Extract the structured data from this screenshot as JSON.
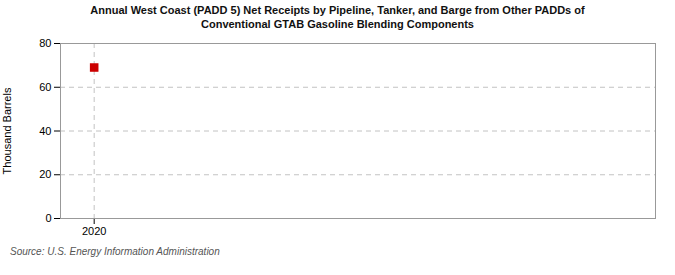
{
  "chart_data": {
    "type": "scatter",
    "title": "Annual West Coast (PADD 5) Net Receipts by Pipeline, Tanker, and Barge from Other PADDs of",
    "subtitle": "Conventional GTAB Gasoline Blending Components",
    "source": "Source: U.S. Energy Information Administration",
    "ylabel": "Thousand Barrels",
    "x": [
      2020
    ],
    "values": [
      69
    ],
    "color": "#cc0000",
    "marker": "square",
    "xlim": [
      2019.7,
      2025.0
    ],
    "xticks": [
      2020
    ],
    "ylim": [
      0,
      80
    ],
    "yticks": [
      0,
      20,
      40,
      60,
      80
    ],
    "grid": true
  }
}
